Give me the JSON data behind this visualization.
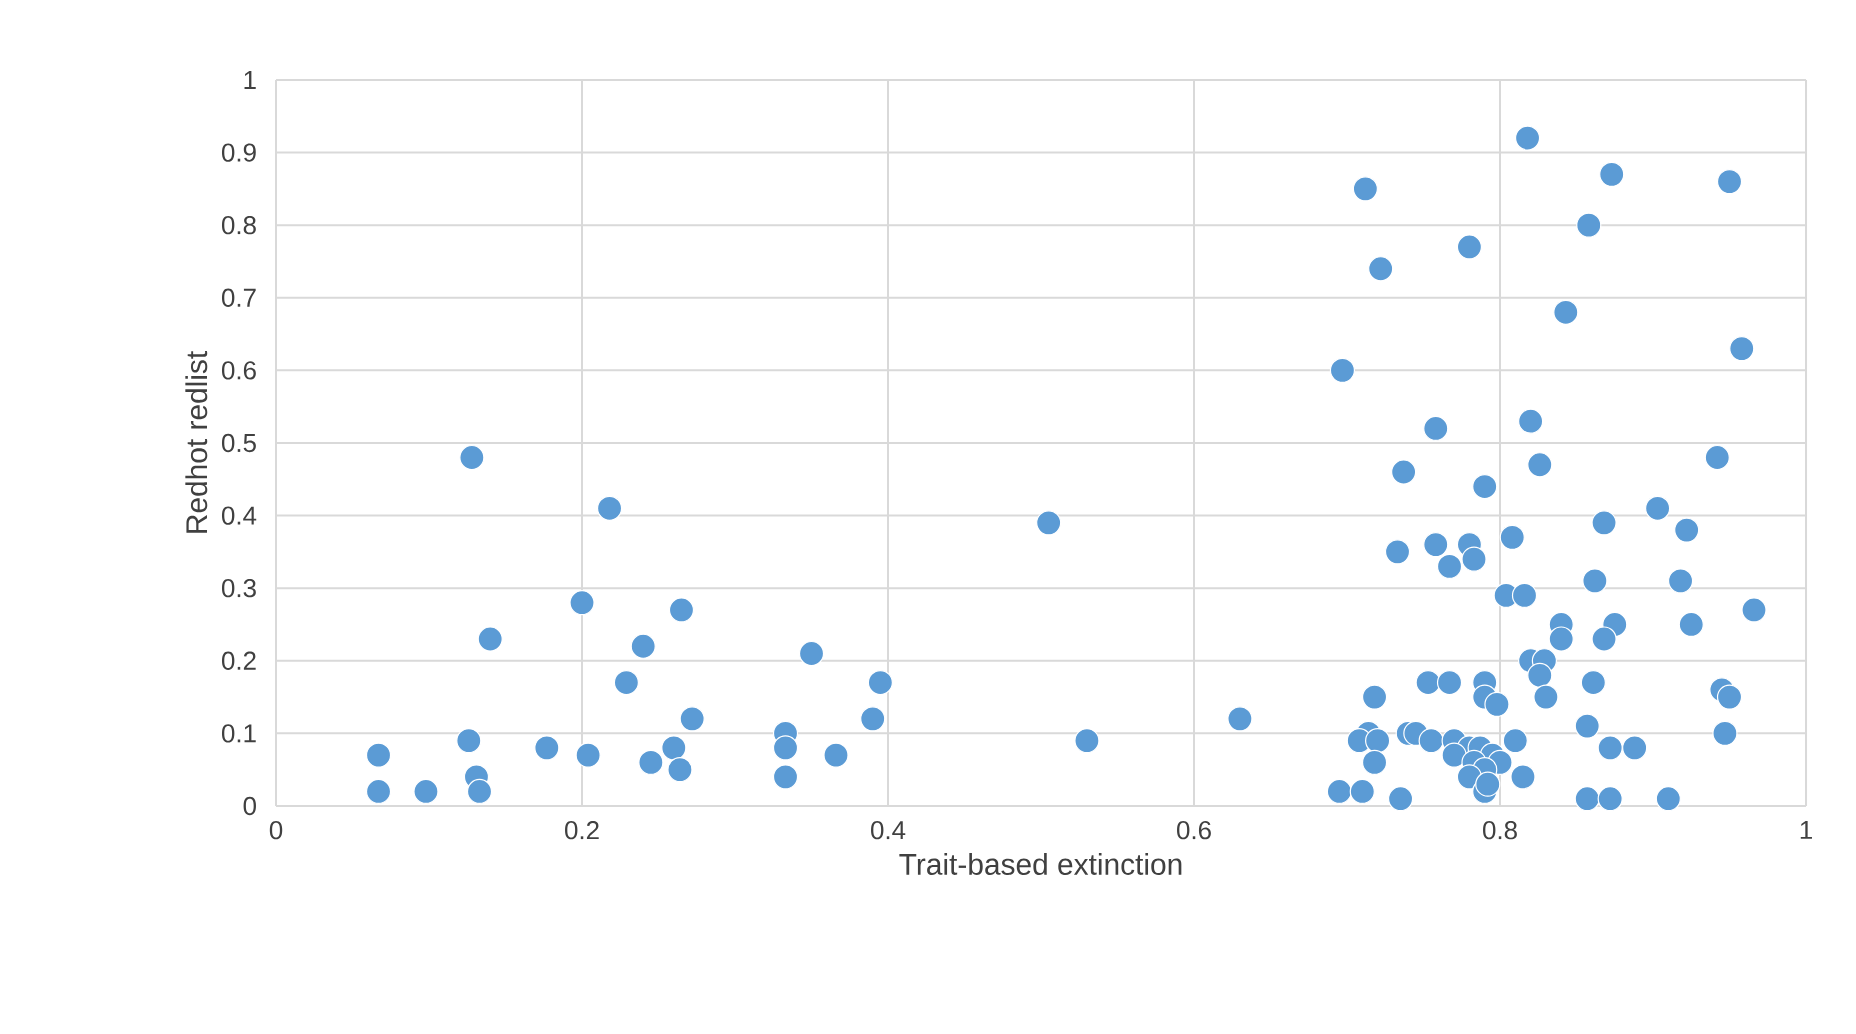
{
  "chart_data": {
    "type": "scatter",
    "xlabel": "Trait-based extinction",
    "ylabel": "Redhot redlist",
    "xlim": [
      0,
      1
    ],
    "ylim": [
      0,
      1
    ],
    "xticks": [
      0,
      0.2,
      0.4,
      0.6,
      0.8,
      1
    ],
    "yticks": [
      0,
      0.1,
      0.2,
      0.3,
      0.4,
      0.5,
      0.6,
      0.7,
      0.8,
      0.9,
      1
    ],
    "grid": true,
    "marker": "circle",
    "legend": false,
    "series": [
      {
        "color": "#5b9bd5",
        "x": [
          0.067,
          0.067,
          0.098,
          0.126,
          0.128,
          0.131,
          0.133,
          0.14,
          0.177,
          0.2,
          0.204,
          0.218,
          0.229,
          0.24,
          0.245,
          0.26,
          0.264,
          0.265,
          0.272,
          0.333,
          0.333,
          0.333,
          0.35,
          0.366,
          0.39,
          0.395,
          0.505,
          0.53,
          0.63,
          0.697,
          0.712,
          0.722,
          0.78,
          0.818,
          0.873,
          0.95,
          0.858,
          0.843,
          0.958,
          0.82,
          0.758,
          0.826,
          0.942,
          0.737,
          0.79,
          0.903,
          0.868,
          0.922,
          0.758,
          0.78,
          0.808,
          0.733,
          0.767,
          0.783,
          0.862,
          0.918,
          0.804,
          0.816,
          0.966,
          0.875,
          0.925,
          0.84,
          0.84,
          0.868,
          0.82,
          0.829,
          0.826,
          0.753,
          0.767,
          0.79,
          0.861,
          0.79,
          0.83,
          0.718,
          0.798,
          0.945,
          0.95,
          0.74,
          0.745,
          0.714,
          0.708,
          0.72,
          0.755,
          0.77,
          0.78,
          0.81,
          0.787,
          0.795,
          0.77,
          0.8,
          0.783,
          0.79,
          0.78,
          0.815,
          0.718,
          0.857,
          0.872,
          0.888,
          0.947,
          0.695,
          0.71,
          0.735,
          0.79,
          0.792,
          0.857,
          0.872,
          0.91
        ],
        "values": [
          0.07,
          0.02,
          0.02,
          0.09,
          0.48,
          0.04,
          0.02,
          0.23,
          0.08,
          0.28,
          0.07,
          0.41,
          0.17,
          0.22,
          0.06,
          0.08,
          0.05,
          0.27,
          0.12,
          0.1,
          0.08,
          0.04,
          0.21,
          0.07,
          0.12,
          0.17,
          0.39,
          0.09,
          0.12,
          0.6,
          0.85,
          0.74,
          0.77,
          0.92,
          0.87,
          0.86,
          0.8,
          0.68,
          0.63,
          0.53,
          0.52,
          0.47,
          0.48,
          0.46,
          0.44,
          0.41,
          0.39,
          0.38,
          0.36,
          0.36,
          0.37,
          0.35,
          0.33,
          0.34,
          0.31,
          0.31,
          0.29,
          0.29,
          0.27,
          0.25,
          0.25,
          0.25,
          0.23,
          0.23,
          0.2,
          0.2,
          0.18,
          0.17,
          0.17,
          0.17,
          0.17,
          0.15,
          0.15,
          0.15,
          0.14,
          0.16,
          0.15,
          0.1,
          0.1,
          0.1,
          0.09,
          0.09,
          0.09,
          0.09,
          0.08,
          0.09,
          0.08,
          0.07,
          0.07,
          0.06,
          0.06,
          0.05,
          0.04,
          0.04,
          0.06,
          0.11,
          0.08,
          0.08,
          0.1,
          0.02,
          0.02,
          0.01,
          0.02,
          0.03,
          0.01,
          0.01,
          0.01
        ]
      }
    ]
  }
}
